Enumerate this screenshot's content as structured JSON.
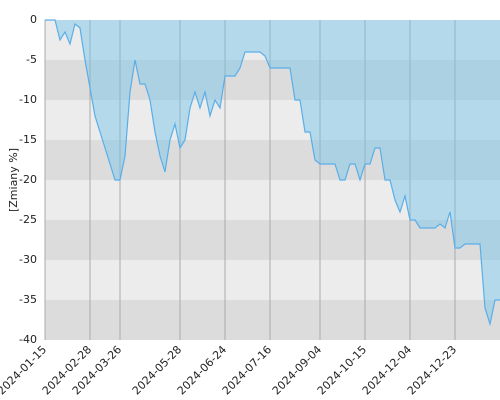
{
  "chart_data": {
    "type": "area",
    "y_label": "[Zmiany %]",
    "categories": [
      "2024-01-15",
      null,
      null,
      null,
      null,
      null,
      null,
      null,
      null,
      "2024-02-28",
      null,
      null,
      null,
      null,
      null,
      "2024-03-26",
      null,
      null,
      null,
      null,
      null,
      null,
      null,
      null,
      null,
      null,
      null,
      "2024-05-28",
      null,
      null,
      null,
      null,
      null,
      null,
      null,
      null,
      "2024-06-24",
      null,
      null,
      null,
      null,
      null,
      null,
      null,
      null,
      "2024-07-16",
      null,
      null,
      null,
      null,
      null,
      null,
      null,
      null,
      null,
      "2024-09-04",
      null,
      null,
      null,
      null,
      null,
      null,
      null,
      null,
      "2024-10-15",
      null,
      null,
      null,
      null,
      null,
      null,
      null,
      null,
      "2024-12-04",
      null,
      null,
      null,
      null,
      null,
      null,
      null,
      null,
      "2024-12-23",
      null,
      null,
      null,
      null,
      null,
      null,
      null,
      null,
      null
    ],
    "series": [
      {
        "color": "#5aaee8",
        "values": [
          0,
          0,
          0,
          -2.5,
          -1.5,
          -3,
          -0.5,
          -1,
          -5,
          -8.5,
          -12,
          -14,
          -16,
          -18,
          -20,
          -20,
          -17,
          -9,
          -5,
          -8,
          -8,
          -10,
          -14,
          -17,
          -19,
          -15,
          -13,
          -16,
          -15,
          -11,
          -9,
          -11,
          -9,
          -12,
          -10,
          -11,
          -7,
          -7,
          -7,
          -6,
          -4,
          -4,
          -4,
          -4,
          -4.5,
          -6,
          -6,
          -6,
          -6,
          -6,
          -10,
          -10,
          -14,
          -14,
          -17.5,
          -18,
          -18,
          -18,
          -18,
          -20,
          -20,
          -18,
          -18,
          -20,
          -18,
          -18,
          -16,
          -16,
          -20,
          -20,
          -22.5,
          -24,
          -22,
          -25,
          -25,
          -26,
          -26,
          -26,
          -26,
          -25.5,
          -26,
          -24,
          -28.5,
          -28.5,
          -28,
          -28,
          -28,
          -28,
          -36,
          -38,
          -35,
          -35
        ]
      }
    ],
    "ylim": [
      -40,
      0
    ],
    "yticks": [
      0,
      -5,
      -10,
      -15,
      -20,
      -25,
      -30,
      -35,
      -40
    ],
    "grid": true
  }
}
